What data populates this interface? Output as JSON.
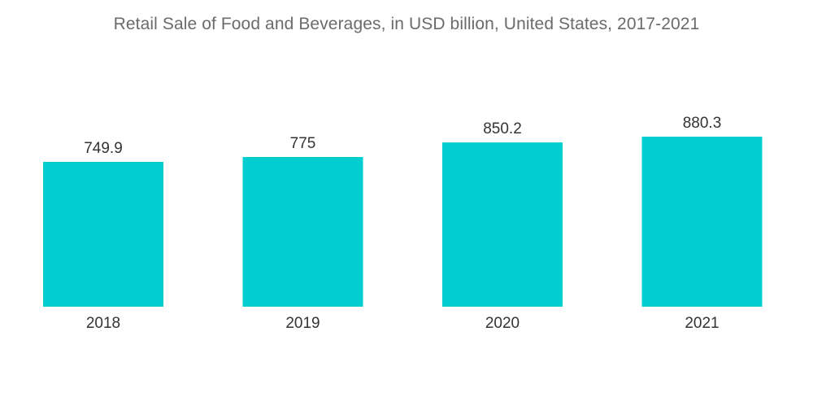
{
  "chart_data": {
    "type": "bar",
    "title": "Retail Sale of Food and Beverages, in USD billion, United States, 2017-2021",
    "categories": [
      "2018",
      "2019",
      "2020",
      "2021"
    ],
    "values": [
      749.9,
      775,
      850.2,
      880.3
    ],
    "value_labels": [
      "749.9",
      "775",
      "850.2",
      "880.3"
    ],
    "xlabel": "",
    "ylabel": "",
    "ylim": [
      0,
      880.3
    ],
    "grid": false,
    "bar_color": "#00CED1"
  }
}
